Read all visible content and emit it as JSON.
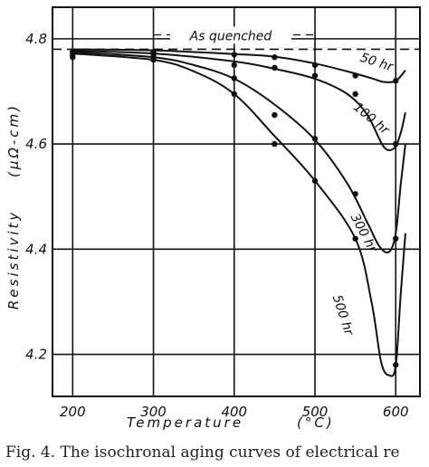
{
  "chart_data": {
    "type": "line",
    "xlabel": "Temperature",
    "xunit": "(°C)",
    "ylabel": "Resistivity",
    "yunit": "(μΩ-cm)",
    "xlim": [
      175,
      630
    ],
    "ylim": [
      4.12,
      4.86
    ],
    "x_ticks": [
      "200",
      "300",
      "400",
      "500",
      "600"
    ],
    "y_ticks": [
      "4.2",
      "4.4",
      "4.6",
      "4.8"
    ],
    "reference_line": {
      "label": "As quenched",
      "value": 4.78
    },
    "grid": true,
    "series": [
      {
        "name": "50 hr",
        "points": [
          [
            200,
            4.775
          ],
          [
            300,
            4.775
          ],
          [
            400,
            4.77
          ],
          [
            450,
            4.765
          ],
          [
            500,
            4.75
          ],
          [
            550,
            4.73
          ],
          [
            600,
            4.72
          ]
        ],
        "curve": [
          [
            200,
            4.78
          ],
          [
            300,
            4.778
          ],
          [
            400,
            4.771
          ],
          [
            450,
            4.766
          ],
          [
            500,
            4.753
          ],
          [
            540,
            4.738
          ],
          [
            570,
            4.725
          ],
          [
            585,
            4.718
          ],
          [
            600,
            4.72
          ],
          [
            612,
            4.74
          ]
        ]
      },
      {
        "name": "100 hr",
        "points": [
          [
            200,
            4.775
          ],
          [
            300,
            4.77
          ],
          [
            400,
            4.75
          ],
          [
            450,
            4.745
          ],
          [
            500,
            4.73
          ],
          [
            550,
            4.695
          ],
          [
            600,
            4.6
          ]
        ],
        "curve": [
          [
            200,
            4.777
          ],
          [
            300,
            4.772
          ],
          [
            400,
            4.757
          ],
          [
            450,
            4.743
          ],
          [
            500,
            4.724
          ],
          [
            540,
            4.695
          ],
          [
            565,
            4.655
          ],
          [
            585,
            4.595
          ],
          [
            598,
            4.592
          ],
          [
            606,
            4.62
          ],
          [
            612,
            4.66
          ]
        ]
      },
      {
        "name": "300 hr",
        "points": [
          [
            200,
            4.77
          ],
          [
            300,
            4.765
          ],
          [
            400,
            4.725
          ],
          [
            450,
            4.655
          ],
          [
            500,
            4.61
          ],
          [
            550,
            4.505
          ],
          [
            600,
            4.42
          ]
        ],
        "curve": [
          [
            200,
            4.775
          ],
          [
            300,
            4.765
          ],
          [
            350,
            4.75
          ],
          [
            400,
            4.724
          ],
          [
            450,
            4.675
          ],
          [
            500,
            4.608
          ],
          [
            540,
            4.525
          ],
          [
            565,
            4.45
          ],
          [
            580,
            4.405
          ],
          [
            592,
            4.395
          ],
          [
            600,
            4.43
          ],
          [
            606,
            4.52
          ],
          [
            612,
            4.6
          ]
        ]
      },
      {
        "name": "500 hr",
        "points": [
          [
            200,
            4.765
          ],
          [
            300,
            4.76
          ],
          [
            400,
            4.695
          ],
          [
            450,
            4.6
          ],
          [
            500,
            4.53
          ],
          [
            550,
            4.42
          ],
          [
            600,
            4.18
          ]
        ],
        "curve": [
          [
            200,
            4.772
          ],
          [
            300,
            4.76
          ],
          [
            350,
            4.738
          ],
          [
            400,
            4.695
          ],
          [
            450,
            4.615
          ],
          [
            500,
            4.53
          ],
          [
            550,
            4.42
          ],
          [
            570,
            4.3
          ],
          [
            582,
            4.185
          ],
          [
            592,
            4.16
          ],
          [
            600,
            4.178
          ],
          [
            606,
            4.31
          ],
          [
            612,
            4.43
          ]
        ]
      }
    ]
  },
  "caption": "Fig. 4. The isochronal aging curves of electrical re"
}
